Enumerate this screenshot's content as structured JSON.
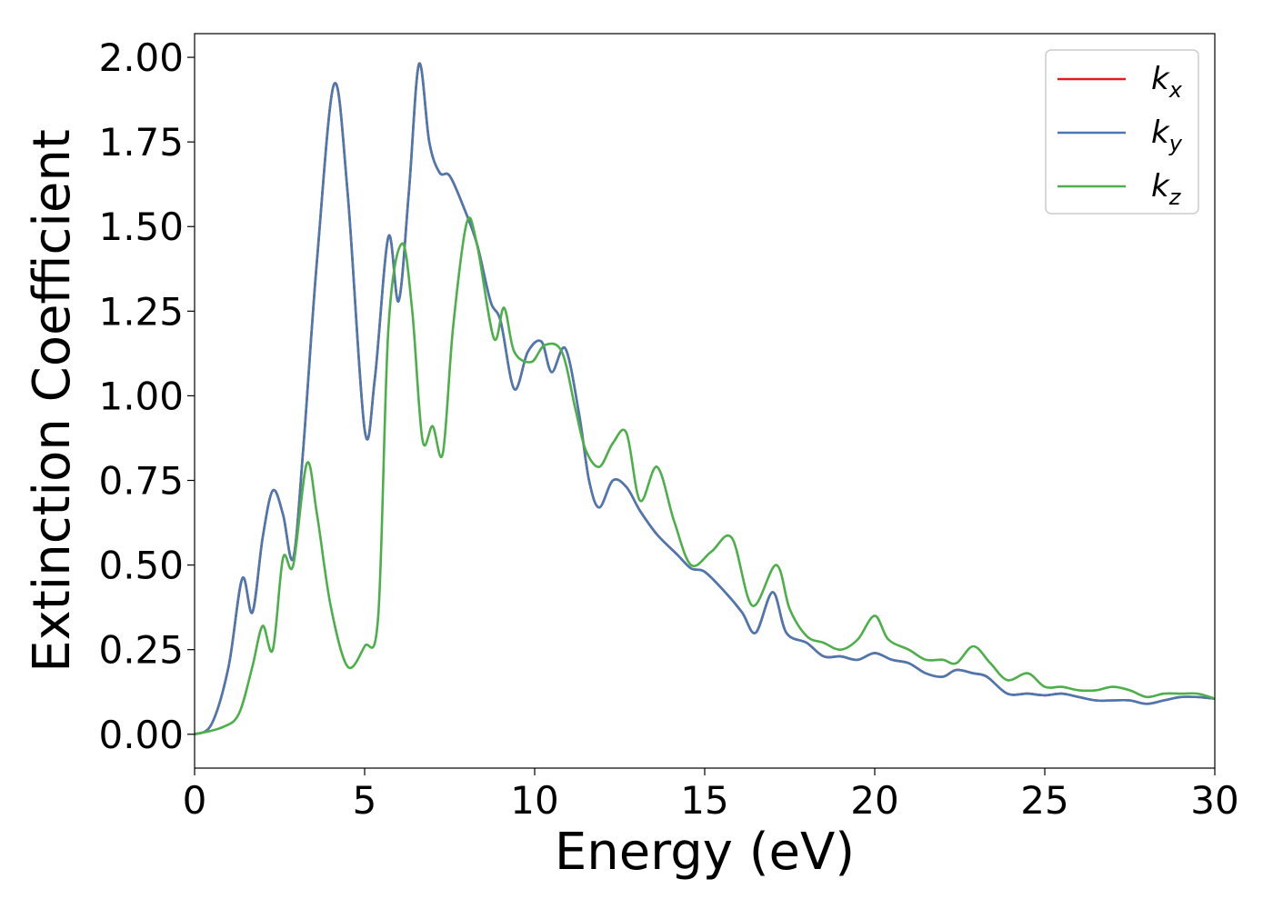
{
  "chart_data": {
    "type": "line",
    "xlabel": "Energy (eV)",
    "ylabel": "Extinction Coefficient",
    "xlim": [
      0,
      30
    ],
    "ylim": [
      -0.1,
      2.07
    ],
    "x_ticks": [
      "0",
      "5",
      "10",
      "15",
      "20",
      "25",
      "30"
    ],
    "y_ticks": [
      "0.00",
      "0.25",
      "0.50",
      "0.75",
      "1.00",
      "1.25",
      "1.50",
      "1.75",
      "2.00"
    ],
    "grid": false,
    "legend_position": "top-right",
    "series": [
      {
        "name": "k_x",
        "legend_main": "k",
        "legend_sub": "x",
        "color": "#e41a1c",
        "points": [
          [
            0,
            0.0
          ],
          [
            0.5,
            0.03
          ],
          [
            1.0,
            0.2
          ],
          [
            1.4,
            0.46
          ],
          [
            1.7,
            0.36
          ],
          [
            2.0,
            0.58
          ],
          [
            2.3,
            0.72
          ],
          [
            2.6,
            0.65
          ],
          [
            2.9,
            0.52
          ],
          [
            3.2,
            0.85
          ],
          [
            3.6,
            1.4
          ],
          [
            4.1,
            1.92
          ],
          [
            4.5,
            1.6
          ],
          [
            5.0,
            0.9
          ],
          [
            5.3,
            1.05
          ],
          [
            5.7,
            1.47
          ],
          [
            6.0,
            1.28
          ],
          [
            6.3,
            1.6
          ],
          [
            6.6,
            1.98
          ],
          [
            6.9,
            1.75
          ],
          [
            7.2,
            1.66
          ],
          [
            7.5,
            1.65
          ],
          [
            7.9,
            1.56
          ],
          [
            8.3,
            1.45
          ],
          [
            8.7,
            1.28
          ],
          [
            9.0,
            1.22
          ],
          [
            9.4,
            1.02
          ],
          [
            9.8,
            1.13
          ],
          [
            10.2,
            1.16
          ],
          [
            10.5,
            1.07
          ],
          [
            10.9,
            1.14
          ],
          [
            11.3,
            0.95
          ],
          [
            11.6,
            0.75
          ],
          [
            11.9,
            0.67
          ],
          [
            12.3,
            0.75
          ],
          [
            12.7,
            0.73
          ],
          [
            13.1,
            0.66
          ],
          [
            13.6,
            0.59
          ],
          [
            14.2,
            0.53
          ],
          [
            14.6,
            0.49
          ],
          [
            15.0,
            0.48
          ],
          [
            15.6,
            0.42
          ],
          [
            16.1,
            0.36
          ],
          [
            16.5,
            0.3
          ],
          [
            17.0,
            0.42
          ],
          [
            17.4,
            0.3
          ],
          [
            18.0,
            0.27
          ],
          [
            18.5,
            0.23
          ],
          [
            19.0,
            0.23
          ],
          [
            19.5,
            0.22
          ],
          [
            20.0,
            0.24
          ],
          [
            20.5,
            0.22
          ],
          [
            21.0,
            0.21
          ],
          [
            21.5,
            0.18
          ],
          [
            22.0,
            0.17
          ],
          [
            22.4,
            0.19
          ],
          [
            22.9,
            0.18
          ],
          [
            23.3,
            0.17
          ],
          [
            23.9,
            0.12
          ],
          [
            24.5,
            0.12
          ],
          [
            25.0,
            0.115
          ],
          [
            25.5,
            0.12
          ],
          [
            26.0,
            0.11
          ],
          [
            26.5,
            0.1
          ],
          [
            27.0,
            0.1
          ],
          [
            27.5,
            0.1
          ],
          [
            28.0,
            0.09
          ],
          [
            28.5,
            0.1
          ],
          [
            29.0,
            0.11
          ],
          [
            29.5,
            0.11
          ],
          [
            30.0,
            0.105
          ]
        ]
      },
      {
        "name": "k_y",
        "legend_main": "k",
        "legend_sub": "y",
        "color": "#4a78b0",
        "points": [
          [
            0,
            0.0
          ],
          [
            0.5,
            0.03
          ],
          [
            1.0,
            0.2
          ],
          [
            1.4,
            0.46
          ],
          [
            1.7,
            0.36
          ],
          [
            2.0,
            0.58
          ],
          [
            2.3,
            0.72
          ],
          [
            2.6,
            0.65
          ],
          [
            2.9,
            0.52
          ],
          [
            3.2,
            0.85
          ],
          [
            3.6,
            1.4
          ],
          [
            4.1,
            1.92
          ],
          [
            4.5,
            1.6
          ],
          [
            5.0,
            0.9
          ],
          [
            5.3,
            1.05
          ],
          [
            5.7,
            1.47
          ],
          [
            6.0,
            1.28
          ],
          [
            6.3,
            1.6
          ],
          [
            6.6,
            1.98
          ],
          [
            6.9,
            1.75
          ],
          [
            7.2,
            1.66
          ],
          [
            7.5,
            1.65
          ],
          [
            7.9,
            1.56
          ],
          [
            8.3,
            1.45
          ],
          [
            8.7,
            1.28
          ],
          [
            9.0,
            1.22
          ],
          [
            9.4,
            1.02
          ],
          [
            9.8,
            1.13
          ],
          [
            10.2,
            1.16
          ],
          [
            10.5,
            1.07
          ],
          [
            10.9,
            1.14
          ],
          [
            11.3,
            0.95
          ],
          [
            11.6,
            0.75
          ],
          [
            11.9,
            0.67
          ],
          [
            12.3,
            0.75
          ],
          [
            12.7,
            0.73
          ],
          [
            13.1,
            0.66
          ],
          [
            13.6,
            0.59
          ],
          [
            14.2,
            0.53
          ],
          [
            14.6,
            0.49
          ],
          [
            15.0,
            0.48
          ],
          [
            15.6,
            0.42
          ],
          [
            16.1,
            0.36
          ],
          [
            16.5,
            0.3
          ],
          [
            17.0,
            0.42
          ],
          [
            17.4,
            0.3
          ],
          [
            18.0,
            0.27
          ],
          [
            18.5,
            0.23
          ],
          [
            19.0,
            0.23
          ],
          [
            19.5,
            0.22
          ],
          [
            20.0,
            0.24
          ],
          [
            20.5,
            0.22
          ],
          [
            21.0,
            0.21
          ],
          [
            21.5,
            0.18
          ],
          [
            22.0,
            0.17
          ],
          [
            22.4,
            0.19
          ],
          [
            22.9,
            0.18
          ],
          [
            23.3,
            0.17
          ],
          [
            23.9,
            0.12
          ],
          [
            24.5,
            0.12
          ],
          [
            25.0,
            0.115
          ],
          [
            25.5,
            0.12
          ],
          [
            26.0,
            0.11
          ],
          [
            26.5,
            0.1
          ],
          [
            27.0,
            0.1
          ],
          [
            27.5,
            0.1
          ],
          [
            28.0,
            0.09
          ],
          [
            28.5,
            0.1
          ],
          [
            29.0,
            0.11
          ],
          [
            29.5,
            0.11
          ],
          [
            30.0,
            0.105
          ]
        ]
      },
      {
        "name": "k_z",
        "legend_main": "k",
        "legend_sub": "z",
        "color": "#4daf4a",
        "points": [
          [
            0,
            0.0
          ],
          [
            0.8,
            0.02
          ],
          [
            1.3,
            0.06
          ],
          [
            1.7,
            0.2
          ],
          [
            2.0,
            0.32
          ],
          [
            2.3,
            0.25
          ],
          [
            2.6,
            0.52
          ],
          [
            2.9,
            0.5
          ],
          [
            3.3,
            0.8
          ],
          [
            3.6,
            0.65
          ],
          [
            4.0,
            0.38
          ],
          [
            4.5,
            0.2
          ],
          [
            5.0,
            0.26
          ],
          [
            5.4,
            0.35
          ],
          [
            5.7,
            1.2
          ],
          [
            6.1,
            1.45
          ],
          [
            6.4,
            1.25
          ],
          [
            6.7,
            0.87
          ],
          [
            7.0,
            0.91
          ],
          [
            7.3,
            0.83
          ],
          [
            7.6,
            1.2
          ],
          [
            8.0,
            1.51
          ],
          [
            8.3,
            1.45
          ],
          [
            8.8,
            1.17
          ],
          [
            9.1,
            1.26
          ],
          [
            9.4,
            1.13
          ],
          [
            9.9,
            1.1
          ],
          [
            10.3,
            1.15
          ],
          [
            10.8,
            1.13
          ],
          [
            11.2,
            0.96
          ],
          [
            11.5,
            0.84
          ],
          [
            11.9,
            0.79
          ],
          [
            12.3,
            0.86
          ],
          [
            12.7,
            0.89
          ],
          [
            13.1,
            0.69
          ],
          [
            13.6,
            0.79
          ],
          [
            14.1,
            0.63
          ],
          [
            14.6,
            0.5
          ],
          [
            15.2,
            0.54
          ],
          [
            15.8,
            0.58
          ],
          [
            16.4,
            0.38
          ],
          [
            17.1,
            0.5
          ],
          [
            17.5,
            0.37
          ],
          [
            18.0,
            0.29
          ],
          [
            18.5,
            0.27
          ],
          [
            19.0,
            0.25
          ],
          [
            19.5,
            0.28
          ],
          [
            20.0,
            0.35
          ],
          [
            20.4,
            0.28
          ],
          [
            21.0,
            0.25
          ],
          [
            21.5,
            0.22
          ],
          [
            22.0,
            0.22
          ],
          [
            22.4,
            0.21
          ],
          [
            22.9,
            0.26
          ],
          [
            23.4,
            0.21
          ],
          [
            23.9,
            0.16
          ],
          [
            24.5,
            0.18
          ],
          [
            25.0,
            0.14
          ],
          [
            25.5,
            0.14
          ],
          [
            26.0,
            0.13
          ],
          [
            26.5,
            0.13
          ],
          [
            27.0,
            0.14
          ],
          [
            27.5,
            0.13
          ],
          [
            28.0,
            0.11
          ],
          [
            28.5,
            0.12
          ],
          [
            29.0,
            0.12
          ],
          [
            29.5,
            0.12
          ],
          [
            30.0,
            0.105
          ]
        ]
      }
    ]
  }
}
